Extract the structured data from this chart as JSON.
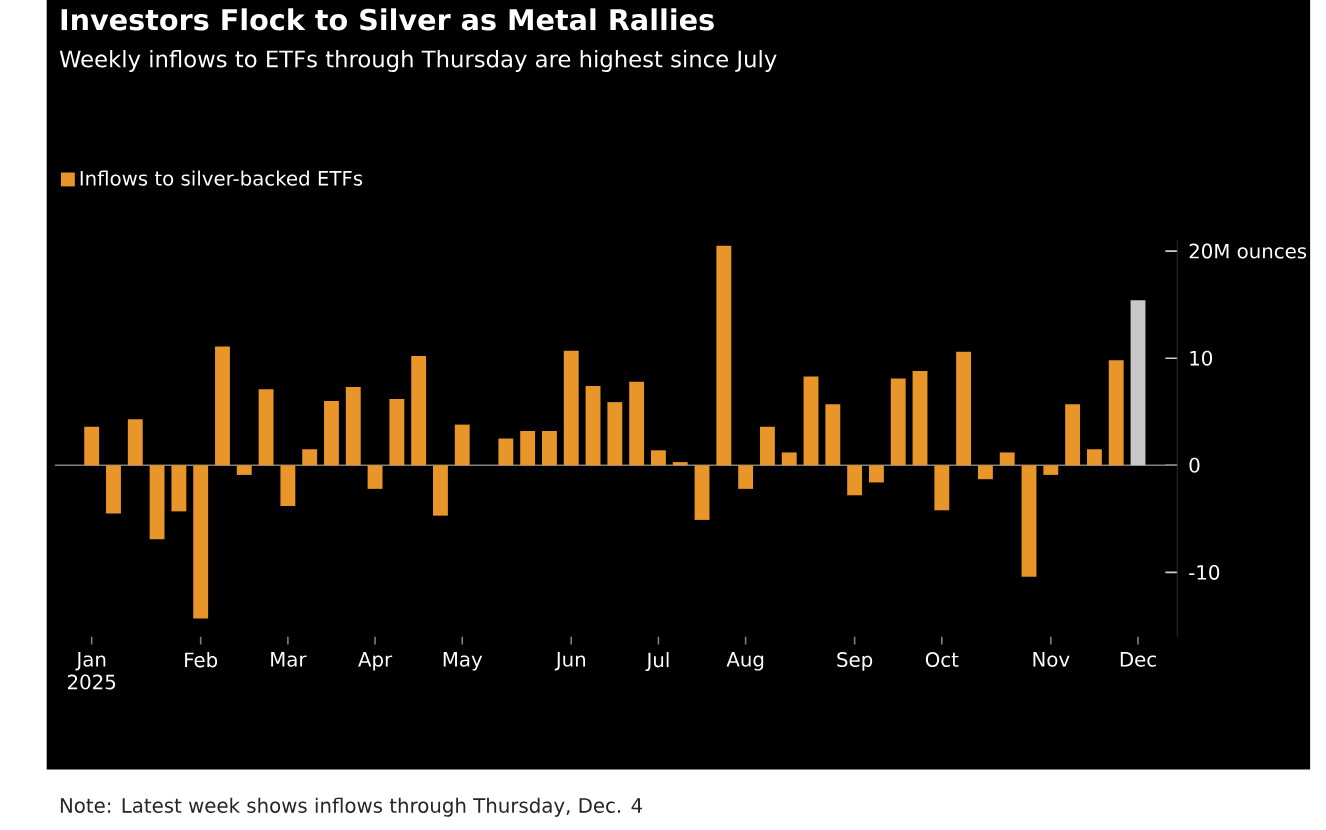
{
  "chart_data": {
    "type": "bar",
    "title": "Investors Flock to Silver as Metal Rallies",
    "subtitle": "Weekly inflows to ETFs through Thursday are highest since July",
    "categories": [
      "Jan 2025",
      null,
      null,
      null,
      null,
      "Feb",
      null,
      null,
      null,
      "Mar",
      null,
      null,
      null,
      "Apr",
      null,
      null,
      null,
      "May",
      null,
      null,
      null,
      null,
      "Jun",
      null,
      null,
      null,
      "Jul",
      null,
      null,
      null,
      "Aug",
      null,
      null,
      null,
      null,
      "Sep",
      null,
      null,
      null,
      "Oct",
      null,
      null,
      null,
      null,
      "Nov",
      null,
      null,
      null,
      "Dec"
    ],
    "series": [
      {
        "name": "Inflows to silver-backed ETFs",
        "color": "#e8952a",
        "values": [
          3.6,
          -4.5,
          4.3,
          -6.9,
          -4.3,
          -14.3,
          11.1,
          -0.9,
          7.1,
          -3.8,
          1.5,
          6.0,
          7.3,
          -2.2,
          6.2,
          10.2,
          -4.7,
          3.8,
          null,
          2.5,
          3.2,
          3.2,
          10.7,
          7.4,
          5.9,
          7.8,
          1.4,
          0.3,
          -5.1,
          20.5,
          -2.2,
          3.6,
          1.2,
          8.3,
          5.7,
          -2.8,
          -1.6,
          8.1,
          8.8,
          -4.2,
          10.6,
          -1.3,
          1.2,
          -10.4,
          -0.9,
          5.7,
          1.5,
          9.8,
          15.4
        ],
        "colors": [
          "#e8952a",
          "#e8952a",
          "#e8952a",
          "#e8952a",
          "#e8952a",
          "#e8952a",
          "#e8952a",
          "#e8952a",
          "#e8952a",
          "#e8952a",
          "#e8952a",
          "#e8952a",
          "#e8952a",
          "#e8952a",
          "#e8952a",
          "#e8952a",
          "#e8952a",
          "#e8952a",
          "#e8952a",
          "#e8952a",
          "#e8952a",
          "#e8952a",
          "#e8952a",
          "#e8952a",
          "#e8952a",
          "#e8952a",
          "#e8952a",
          "#e8952a",
          "#e8952a",
          "#e8952a",
          "#e8952a",
          "#e8952a",
          "#e8952a",
          "#e8952a",
          "#e8952a",
          "#e8952a",
          "#e8952a",
          "#e8952a",
          "#e8952a",
          "#e8952a",
          "#e8952a",
          "#e8952a",
          "#e8952a",
          "#e8952a",
          "#e8952a",
          "#e8952a",
          "#e8952a",
          "#e8952a",
          "#c8c8c8"
        ]
      }
    ],
    "ylim": [
      -16,
      21
    ],
    "yticks": [
      {
        "value": 20,
        "label": "20M ounces"
      },
      10,
      0,
      -10
    ],
    "legend": "top left",
    "grid": false,
    "ref_lines": [
      {
        "axis": "y",
        "value": 0,
        "color": "#808080"
      }
    ],
    "annotations": [
      "Note: Latest week shows inflows through Thursday, Dec. 4"
    ]
  }
}
